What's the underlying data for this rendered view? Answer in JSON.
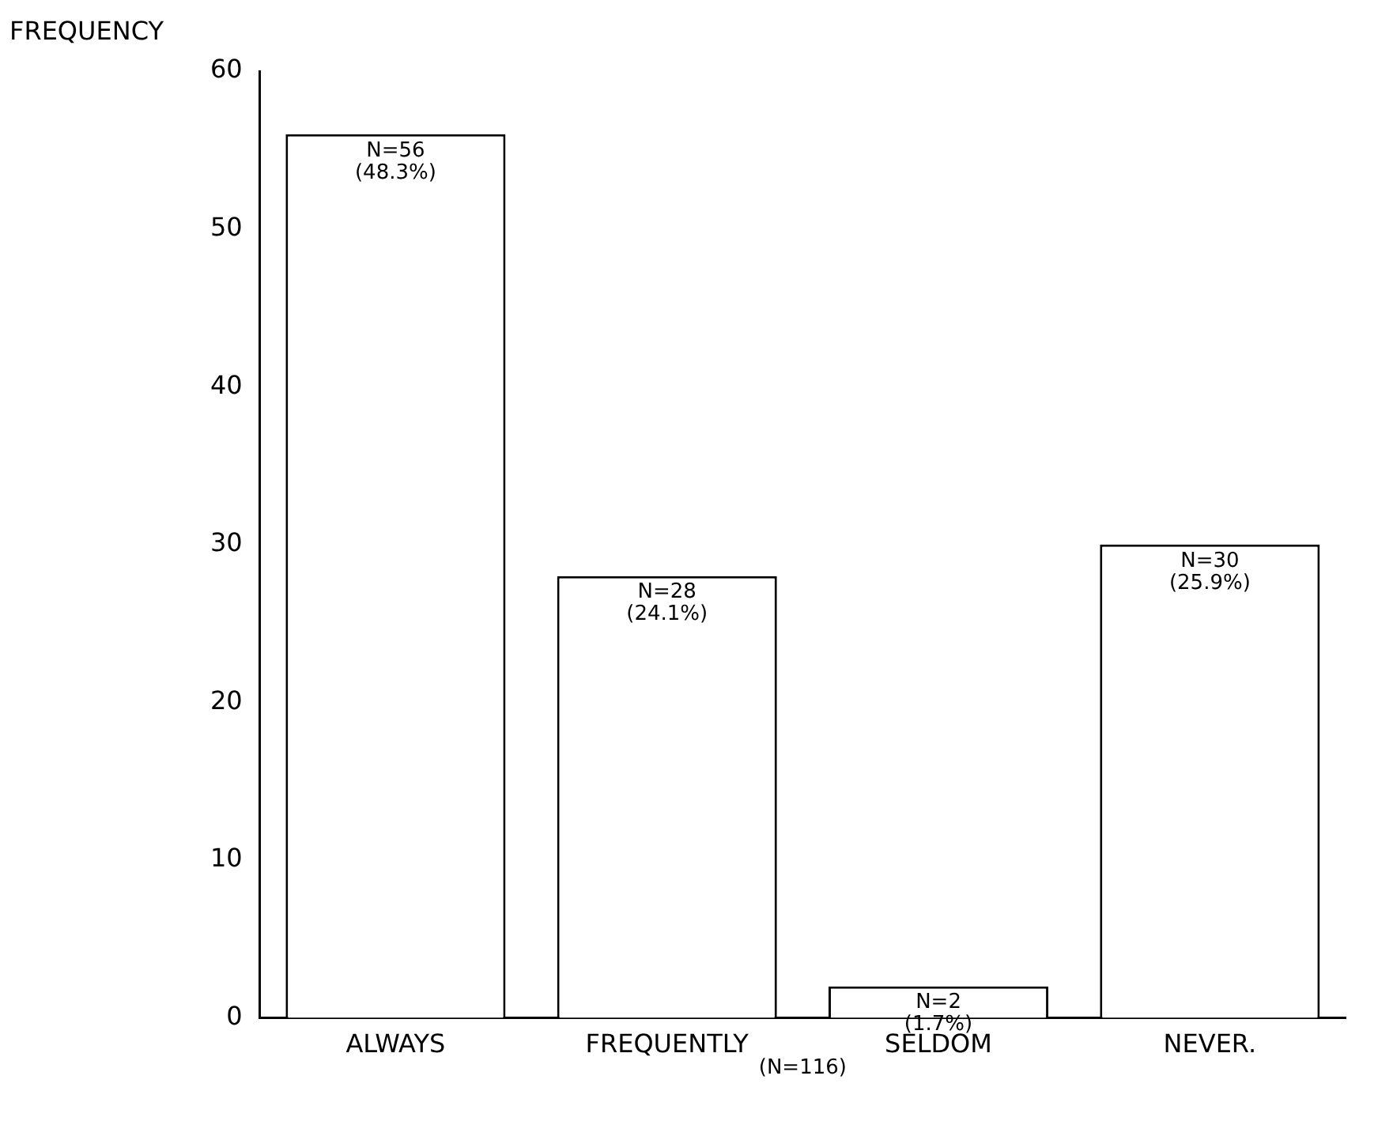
{
  "chart_data": {
    "type": "bar",
    "ylabel": "FREQUENCY",
    "categories": [
      "ALWAYS",
      "FREQUENTLY",
      "SELDOM",
      "NEVER."
    ],
    "values": [
      56,
      28,
      2,
      30
    ],
    "color": "#ffffff",
    "value_labels": [
      "N=56\n(48.3%)",
      "N=28\n(24.1%)",
      "N=2\n(1.7%)",
      "N=30\n(25.9%)"
    ],
    "ylim": [
      0,
      60
    ],
    "yticks": [
      0,
      10,
      20,
      30,
      40,
      50,
      60
    ],
    "grid": false,
    "legend": false,
    "annotations": [
      "(N=116)"
    ]
  }
}
